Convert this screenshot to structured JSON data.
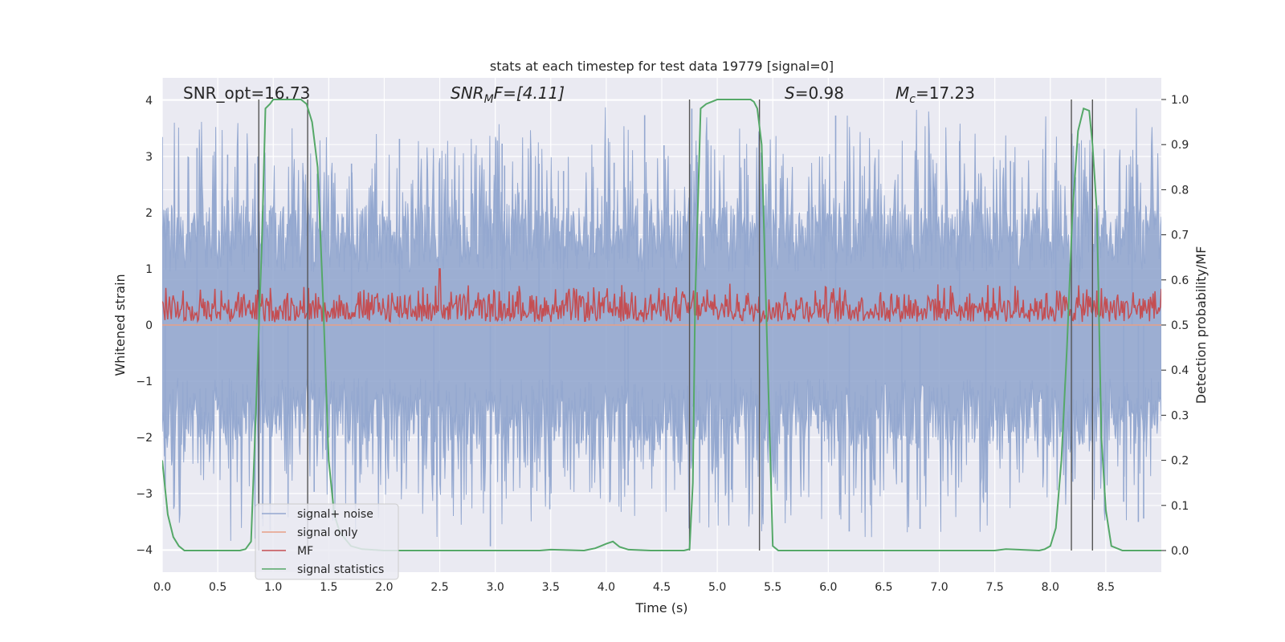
{
  "chart_data": {
    "type": "line",
    "title": "stats at each timestep for test data 19779 [signal=0]",
    "xlabel": "Time (s)",
    "ylabel": "Whitened strain",
    "y2label": "Detection probability/MF",
    "xlim": [
      0,
      9
    ],
    "ylim": [
      -4.4,
      4.4
    ],
    "y2lim": [
      -0.048,
      1.048
    ],
    "x_ticks": [
      0.0,
      0.5,
      1.0,
      1.5,
      2.0,
      2.5,
      3.0,
      3.5,
      4.0,
      4.5,
      5.0,
      5.5,
      6.0,
      6.5,
      7.0,
      7.5,
      8.0,
      8.5
    ],
    "x_tick_labels": [
      "0.0",
      "0.5",
      "1.0",
      "1.5",
      "2.0",
      "2.5",
      "3.0",
      "3.5",
      "4.0",
      "4.5",
      "5.0",
      "5.5",
      "6.0",
      "6.5",
      "7.0",
      "7.5",
      "8.0",
      "8.5"
    ],
    "y_ticks": [
      -4,
      -3,
      -2,
      -1,
      0,
      1,
      2,
      3,
      4
    ],
    "y_tick_labels": [
      "−4",
      "−3",
      "−2",
      "−1",
      "0",
      "1",
      "2",
      "3",
      "4"
    ],
    "y2_ticks": [
      0.0,
      0.1,
      0.2,
      0.3,
      0.4,
      0.5,
      0.6,
      0.7,
      0.8,
      0.9,
      1.0
    ],
    "y2_tick_labels": [
      "0.0",
      "0.1",
      "0.2",
      "0.3",
      "0.4",
      "0.5",
      "0.6",
      "0.7",
      "0.8",
      "0.9",
      "1.0"
    ],
    "annotations": {
      "snr_opt": "SNR_opt=16.73",
      "snr_mf_main": "SNR",
      "snr_mf_sub": "M",
      "snr_mf_rest": "F=[4.11]",
      "s_main": "S",
      "s_rest": "=0.98",
      "mc_main": "M",
      "mc_sub": "c",
      "mc_rest": "=17.23"
    },
    "legend": {
      "placement": "lower-left",
      "entries": [
        "signal+ noise",
        "signal only",
        "MF",
        "signal statistics"
      ]
    },
    "vertical_markers": [
      0.87,
      1.31,
      4.75,
      5.38,
      8.19,
      8.38
    ],
    "noise_band": {
      "approx_lower": -1.6,
      "approx_upper": 1.6,
      "min": -3.95,
      "max": 3.95,
      "duration": 9.0
    },
    "mf_band": {
      "approx_lower": 0.05,
      "approx_upper": 0.75,
      "peak": 1.0,
      "peak_time": 2.5
    },
    "signal_only": {
      "value": 0
    },
    "series": [
      {
        "name": "signal statistics",
        "axis": "right",
        "x": [
          0.0,
          0.05,
          0.1,
          0.15,
          0.2,
          0.3,
          0.5,
          0.7,
          0.75,
          0.8,
          0.85,
          0.9,
          0.93,
          0.97,
          1.0,
          1.1,
          1.2,
          1.25,
          1.3,
          1.35,
          1.4,
          1.45,
          1.5,
          1.55,
          1.6,
          1.7,
          1.8,
          2.0,
          2.2,
          2.5,
          3.0,
          3.4,
          3.5,
          3.8,
          3.9,
          3.95,
          4.0,
          4.06,
          4.12,
          4.2,
          4.4,
          4.6,
          4.7,
          4.75,
          4.78,
          4.8,
          4.85,
          4.9,
          5.0,
          5.1,
          5.2,
          5.3,
          5.33,
          5.36,
          5.4,
          5.45,
          5.5,
          5.55,
          5.6,
          6.0,
          7.0,
          7.5,
          7.6,
          7.9,
          7.95,
          8.0,
          8.05,
          8.1,
          8.15,
          8.2,
          8.25,
          8.3,
          8.35,
          8.38,
          8.42,
          8.46,
          8.5,
          8.55,
          8.65,
          9.0
        ],
        "values": [
          0.2,
          0.08,
          0.03,
          0.01,
          0.0,
          0.0,
          0.0,
          0.0,
          0.003,
          0.02,
          0.35,
          0.7,
          0.98,
          0.99,
          1.0,
          1.0,
          1.0,
          1.0,
          0.99,
          0.95,
          0.85,
          0.55,
          0.2,
          0.08,
          0.04,
          0.01,
          0.003,
          0.0,
          0.0,
          0.0,
          0.0,
          0.0,
          0.002,
          0.0,
          0.005,
          0.01,
          0.015,
          0.02,
          0.008,
          0.002,
          0.0,
          0.0,
          0.0,
          0.003,
          0.15,
          0.55,
          0.98,
          0.99,
          1.0,
          1.0,
          1.0,
          1.0,
          0.995,
          0.98,
          0.9,
          0.45,
          0.01,
          0.0,
          0.0,
          0.0,
          0.0,
          0.0,
          0.003,
          0.0,
          0.003,
          0.01,
          0.05,
          0.2,
          0.45,
          0.75,
          0.93,
          0.98,
          0.975,
          0.9,
          0.75,
          0.25,
          0.09,
          0.01,
          0.0,
          0.0
        ]
      }
    ]
  }
}
